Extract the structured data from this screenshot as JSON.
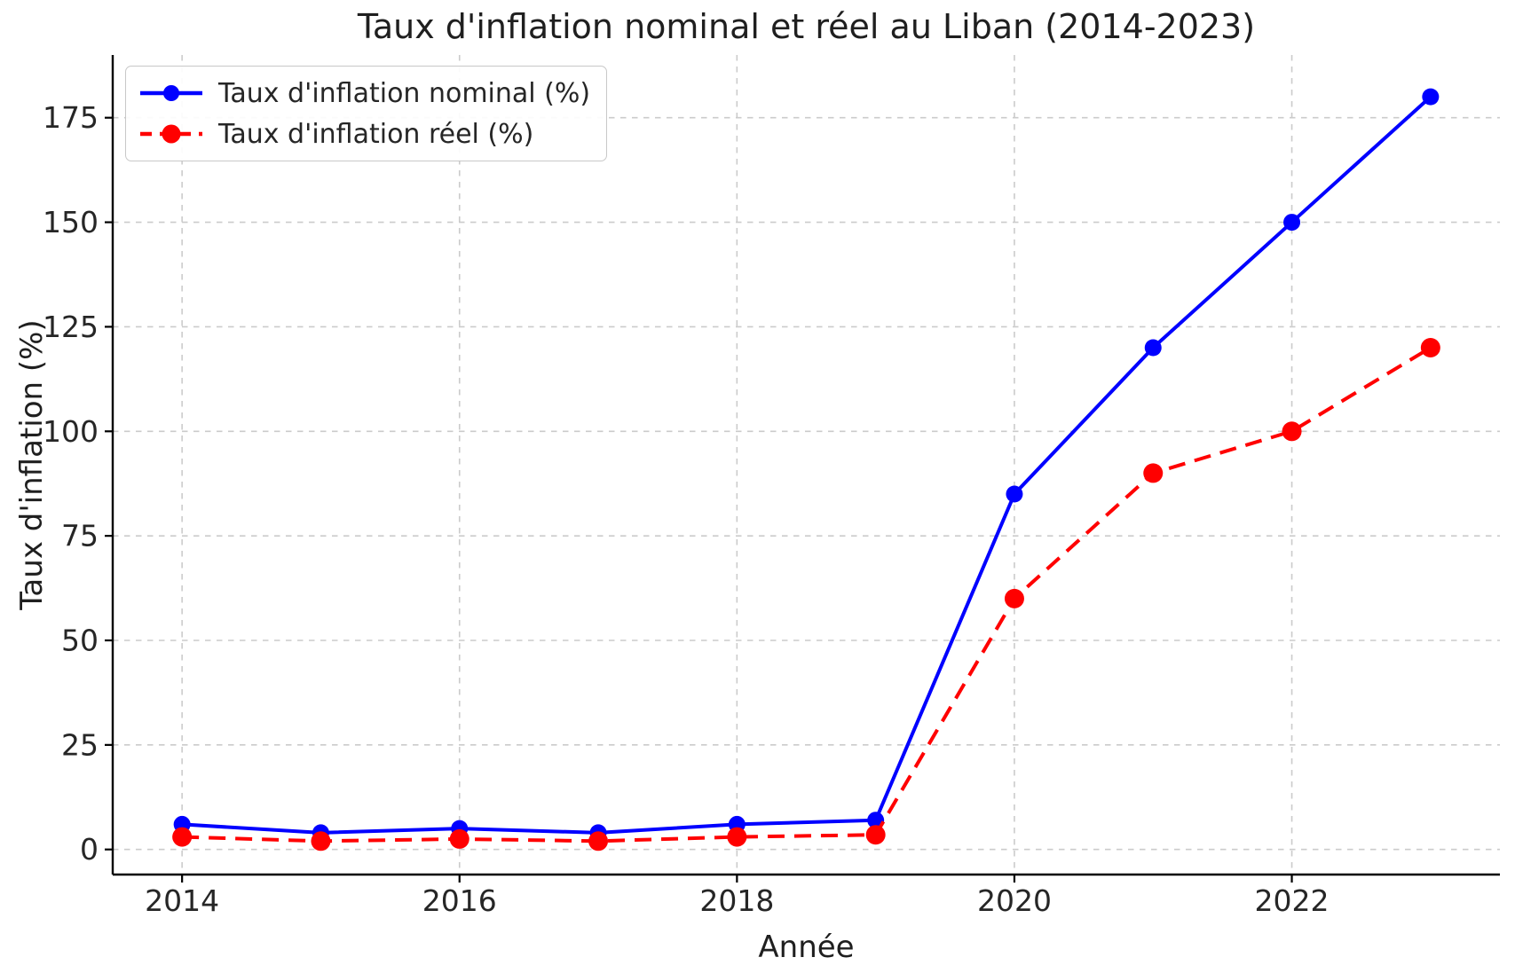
{
  "figure": {
    "title": "Taux d'inflation nominal et réel au Liban (2014-2023)"
  },
  "chart_data": {
    "type": "line",
    "title": "Taux d'inflation nominal et réel au Liban (2014-2023)",
    "xlabel": "Année",
    "ylabel": "Taux d'inflation (%)",
    "x": [
      2014,
      2015,
      2016,
      2017,
      2018,
      2019,
      2020,
      2021,
      2022,
      2023
    ],
    "series": [
      {
        "name": "Taux d'inflation nominal (%)",
        "color": "#0000ff",
        "line_style": "solid",
        "marker": "circle",
        "marker_radius": 9.5,
        "values": [
          6,
          4,
          5,
          4,
          6,
          7,
          85,
          120,
          150,
          180
        ]
      },
      {
        "name": "Taux d'inflation réel (%)",
        "color": "#ff0000",
        "line_style": "dashed",
        "marker": "circle",
        "marker_radius": 11,
        "values": [
          3,
          2,
          2.5,
          2,
          3,
          3.5,
          60,
          90,
          100,
          120
        ]
      }
    ],
    "xticks": [
      2014,
      2016,
      2018,
      2020,
      2022
    ],
    "yticks": [
      0,
      25,
      50,
      75,
      100,
      125,
      150,
      175
    ],
    "xlim": [
      2013.5,
      2023.5
    ],
    "ylim": [
      -6,
      190
    ],
    "grid": true,
    "grid_color": "#cbcbcb",
    "spine_color": "#000000",
    "text_color": "#262626",
    "background": "#ffffff",
    "legend_position": "upper left"
  }
}
